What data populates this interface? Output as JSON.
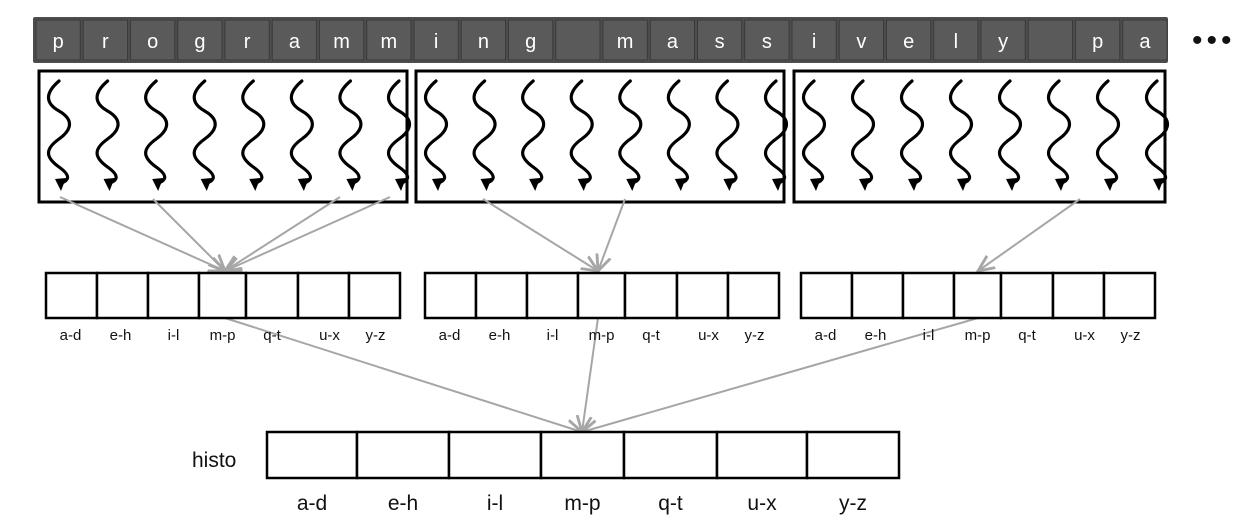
{
  "input_chars": [
    "p",
    "r",
    "o",
    "g",
    "r",
    "a",
    "m",
    "m",
    "i",
    "n",
    "g",
    "",
    "m",
    "a",
    "s",
    "s",
    "i",
    "v",
    "e",
    "l",
    "y",
    "",
    "p",
    "a"
  ],
  "ellipsis": "•••",
  "bin_labels": [
    "a-d",
    "e-h",
    "i-l",
    "m-p",
    "q-t",
    "u-x",
    "y-z"
  ],
  "histo_label": "histo",
  "colors": {
    "input_cell": "#5a5a5a",
    "input_text": "#ffffff",
    "arrow": "#a6a6a6",
    "outline": "#000000"
  }
}
